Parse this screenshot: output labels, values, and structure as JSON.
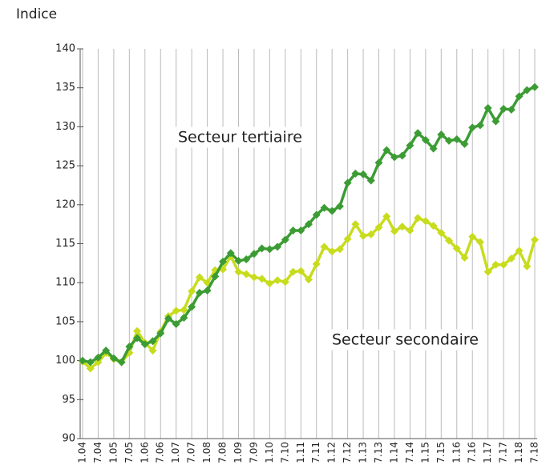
{
  "chart_data": {
    "type": "line",
    "y_label": "Indice",
    "annotations": [
      "Secteur tertiaire",
      "Secteur secondaire"
    ],
    "categories": [
      "1.04",
      null,
      "7.04",
      null,
      "1.05",
      null,
      "7.05",
      null,
      "1.06",
      null,
      "7.06",
      null,
      "1.07",
      null,
      "7.07",
      null,
      "1.08",
      null,
      "7.08",
      null,
      "1.09",
      null,
      "7.09",
      null,
      "1.10",
      null,
      "7.10",
      null,
      "1.11",
      null,
      "7.11",
      null,
      "1.12",
      null,
      "7.12",
      null,
      "1.13",
      null,
      "7.13",
      null,
      "1.14",
      null,
      "7.14",
      null,
      "1.15",
      null,
      "7.15",
      null,
      "1.16",
      null,
      "7.16",
      null,
      "1.17",
      null,
      "7.17",
      null,
      "1.18",
      null,
      "7.18"
    ],
    "series": [
      {
        "color": "#c8dc1e",
        "values": [
          99.9,
          99.0,
          99.8,
          101.0,
          100.2,
          99.8,
          101.0,
          103.8,
          102.3,
          101.3,
          103.7,
          105.7,
          106.4,
          106.5,
          108.9,
          110.7,
          110.0,
          111.6,
          111.7,
          113.4,
          111.4,
          111.1,
          110.7,
          110.5,
          109.9,
          110.3,
          110.1,
          111.4,
          111.5,
          110.4,
          112.4,
          114.6,
          114.0,
          114.3,
          115.6,
          117.5,
          116.0,
          116.2,
          117.1,
          118.5,
          116.6,
          117.2,
          116.7,
          118.3,
          117.9,
          117.3,
          116.4,
          115.4,
          114.4,
          113.2,
          115.9,
          115.2,
          111.4,
          112.3,
          112.3,
          113.1,
          114.1,
          112.1,
          115.5
        ]
      },
      {
        "color": "#3c9c34",
        "values": [
          100.0,
          99.8,
          100.4,
          101.3,
          100.3,
          99.8,
          101.8,
          102.9,
          102.1,
          102.5,
          103.5,
          105.4,
          104.7,
          105.5,
          106.9,
          108.7,
          109.0,
          110.8,
          112.7,
          113.8,
          112.8,
          113.0,
          113.7,
          114.4,
          114.3,
          114.6,
          115.5,
          116.7,
          116.7,
          117.5,
          118.7,
          119.6,
          119.2,
          119.8,
          122.8,
          124.0,
          123.9,
          123.1,
          125.4,
          127.0,
          126.1,
          126.3,
          127.6,
          129.2,
          128.3,
          127.2,
          129.0,
          128.2,
          128.4,
          127.8,
          129.9,
          130.2,
          132.4,
          130.7,
          132.3,
          132.2,
          133.9,
          134.7,
          135.1
        ]
      }
    ],
    "ylim": [
      90,
      140
    ],
    "yticks": [
      90,
      95,
      100,
      105,
      110,
      115,
      120,
      125,
      130,
      135,
      140
    ],
    "grid": true
  }
}
